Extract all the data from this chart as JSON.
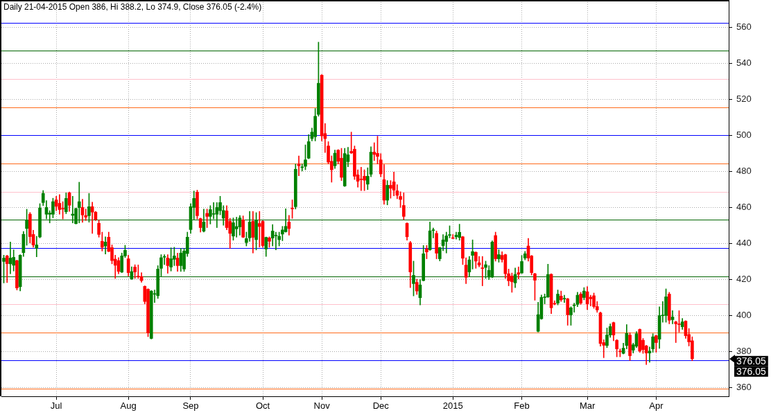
{
  "chart_data": {
    "type": "candlestick",
    "title": "Daily 21-04-2015 Open 386, Hi 388.2, Lo 374.9, Close 376.05 (-2.4%)",
    "categories": [
      null,
      null,
      null,
      null,
      null,
      null,
      null,
      null,
      null,
      null,
      null,
      null,
      null,
      null,
      null,
      null,
      "Jul",
      null,
      null,
      null,
      null,
      null,
      null,
      null,
      null,
      null,
      null,
      null,
      null,
      null,
      null,
      null,
      null,
      null,
      null,
      null,
      null,
      null,
      "Aug",
      null,
      null,
      null,
      null,
      null,
      null,
      null,
      null,
      null,
      null,
      null,
      null,
      null,
      null,
      null,
      null,
      null,
      null,
      "Sep",
      null,
      null,
      null,
      null,
      null,
      null,
      null,
      null,
      null,
      null,
      null,
      null,
      null,
      null,
      null,
      null,
      null,
      null,
      null,
      null,
      null,
      "Oct",
      null,
      null,
      null,
      null,
      null,
      null,
      null,
      null,
      null,
      null,
      null,
      null,
      null,
      null,
      null,
      null,
      null,
      "Nov",
      null,
      null,
      null,
      null,
      null,
      null,
      null,
      null,
      null,
      null,
      null,
      null,
      null,
      null,
      null,
      null,
      null,
      "Dec",
      null,
      null,
      null,
      null,
      null,
      null,
      null,
      null,
      null,
      null,
      null,
      null,
      null,
      null,
      null,
      null,
      null,
      null,
      null,
      null,
      null,
      "2015",
      null,
      null,
      null,
      null,
      null,
      null,
      null,
      null,
      null,
      null,
      null,
      null,
      null,
      null,
      null,
      null,
      null,
      null,
      null,
      null,
      "Feb",
      null,
      null,
      null,
      null,
      null,
      null,
      null,
      null,
      null,
      null,
      null,
      null,
      null,
      null,
      null,
      null,
      null,
      null,
      null,
      "Mar",
      null,
      null,
      null,
      null,
      null,
      null,
      null,
      null,
      null,
      null,
      null,
      null,
      null,
      null,
      null,
      null,
      null,
      null,
      null,
      null,
      "Apr",
      null,
      null,
      null,
      null,
      null,
      null,
      null,
      null,
      null,
      null,
      null
    ],
    "ohlc": [
      [
        430.0,
        433.5,
        418.1,
        431.9
      ],
      [
        433.1,
        433.5,
        418.3,
        428.8
      ],
      [
        428.7,
        440.8,
        423.2,
        431.9
      ],
      [
        427.9,
        436.5,
        424.7,
        432.3
      ],
      [
        430.5,
        430.8,
        414.2,
        415.3
      ],
      [
        416.0,
        433.8,
        413.7,
        433.5
      ],
      [
        434.9,
        446.7,
        432.8,
        445.1
      ],
      [
        448.3,
        459.0,
        439.0,
        453.0
      ],
      [
        456.3,
        457.2,
        440.3,
        443.8
      ],
      [
        445.0,
        447.3,
        437.9,
        439.1
      ],
      [
        437.3,
        444.0,
        432.6,
        439.2
      ],
      [
        443.6,
        462.1,
        443.1,
        459.7
      ],
      [
        462.7,
        469.4,
        461.0,
        467.8
      ],
      [
        456.2,
        463.8,
        453.6,
        460.0
      ],
      [
        456.2,
        458.2,
        451.4,
        456.9
      ],
      [
        456.2,
        465.1,
        454.2,
        463.2
      ],
      [
        464.2,
        466.2,
        458.2,
        460.6
      ],
      [
        462.3,
        467.1,
        456.2,
        458.8
      ],
      [
        459.3,
        463.2,
        453.6,
        459.1
      ],
      [
        457.6,
        468.1,
        456.5,
        465.0
      ],
      [
        468.1,
        468.6,
        457.8,
        461.2
      ],
      [
        455.6,
        466.2,
        451.4,
        456.3
      ],
      [
        451.0,
        459.7,
        450.8,
        459.4
      ],
      [
        459.9,
        474.0,
        451.4,
        463.2
      ],
      [
        460.0,
        464.5,
        451.7,
        455.8
      ],
      [
        455.5,
        459.1,
        452.7,
        454.6
      ],
      [
        455.4,
        467.8,
        451.8,
        460.4
      ],
      [
        460.4,
        462.9,
        445.6,
        457.4
      ],
      [
        457.4,
        457.8,
        452.7,
        453.3
      ],
      [
        451.2,
        452.9,
        443.5,
        445.0
      ],
      [
        441.2,
        446.3,
        435.8,
        437.9
      ],
      [
        438.6,
        443.7,
        434.1,
        440.8
      ],
      [
        443.5,
        446.3,
        435.4,
        435.6
      ],
      [
        437.7,
        439.2,
        428.7,
        430.5
      ],
      [
        431.3,
        433.5,
        420.6,
        427.9
      ],
      [
        430.5,
        432.2,
        423.2,
        424.5
      ],
      [
        424.1,
        434.7,
        423.8,
        433.1
      ],
      [
        433.1,
        439.0,
        432.2,
        436.2
      ],
      [
        431.5,
        433.5,
        421.9,
        423.8
      ],
      [
        420.3,
        427.1,
        420.0,
        424.4
      ],
      [
        426.9,
        428.2,
        420.6,
        424.2
      ],
      [
        421.8,
        428.1,
        420.6,
        421.5
      ],
      [
        421.7,
        423.8,
        418.5,
        419.4
      ],
      [
        416.2,
        416.5,
        406.5,
        407.8
      ],
      [
        414.6,
        414.9,
        388.3,
        390.3
      ],
      [
        387.3,
        413.9,
        387.0,
        413.6
      ],
      [
        411.8,
        414.2,
        407.2,
        412.0
      ],
      [
        411.0,
        427.7,
        409.5,
        425.8
      ],
      [
        426.2,
        433.8,
        421.5,
        432.1
      ],
      [
        432.4,
        433.8,
        428.3,
        432.6
      ],
      [
        431.9,
        433.8,
        423.5,
        427.7
      ],
      [
        426.9,
        437.6,
        424.7,
        431.5
      ],
      [
        431.2,
        437.9,
        427.7,
        433.1
      ],
      [
        431.9,
        434.7,
        424.5,
        427.7
      ],
      [
        427.7,
        437.3,
        424.5,
        434.7
      ],
      [
        425.8,
        437.3,
        424.5,
        435.8
      ],
      [
        434.4,
        446.3,
        432.8,
        443.5
      ],
      [
        447.7,
        462.1,
        445.6,
        460.4
      ],
      [
        460.0,
        469.1,
        453.1,
        465.0
      ],
      [
        468.5,
        469.6,
        453.6,
        455.4
      ],
      [
        453.8,
        454.1,
        446.3,
        448.8
      ],
      [
        446.8,
        459.1,
        446.3,
        451.9
      ],
      [
        456.7,
        459.1,
        448.8,
        455.0
      ],
      [
        455.0,
        461.0,
        450.8,
        458.8
      ],
      [
        456.2,
        462.7,
        453.6,
        456.4
      ],
      [
        456.2,
        462.7,
        448.8,
        460.0
      ],
      [
        458.2,
        466.2,
        455.9,
        462.7
      ],
      [
        454.0,
        461.0,
        450.1,
        458.3
      ],
      [
        458.1,
        461.0,
        447.6,
        448.8
      ],
      [
        452.3,
        454.0,
        437.3,
        445.6
      ],
      [
        444.1,
        454.2,
        441.8,
        451.5
      ],
      [
        448.1,
        454.6,
        443.5,
        449.4
      ],
      [
        449.2,
        455.5,
        444.6,
        454.2
      ],
      [
        453.1,
        455.3,
        443.2,
        443.5
      ],
      [
        440.5,
        446.3,
        438.6,
        442.7
      ],
      [
        443.1,
        457.8,
        441.2,
        451.9
      ],
      [
        452.3,
        457.8,
        434.7,
        443.4
      ],
      [
        442.1,
        457.1,
        436.4,
        453.0
      ],
      [
        451.1,
        457.8,
        438.0,
        449.4
      ],
      [
        452.3,
        452.6,
        437.9,
        438.8
      ],
      [
        436.9,
        443.6,
        432.8,
        443.4
      ],
      [
        443.1,
        443.7,
        437.9,
        441.2
      ],
      [
        443.0,
        450.5,
        438.6,
        446.9
      ],
      [
        444.2,
        446.3,
        436.4,
        444.4
      ],
      [
        442.1,
        446.3,
        438.6,
        444.0
      ],
      [
        445.2,
        449.5,
        441.5,
        447.5
      ],
      [
        446.5,
        459.3,
        446.2,
        449.5
      ],
      [
        451.9,
        455.6,
        444.6,
        448.3
      ],
      [
        459.4,
        464.2,
        453.9,
        459.2
      ],
      [
        460.4,
        484.1,
        459.1,
        481.2
      ],
      [
        484.1,
        488.6,
        477.6,
        483.1
      ],
      [
        482.1,
        484.1,
        480.2,
        482.3
      ],
      [
        482.8,
        494.7,
        480.9,
        486.4
      ],
      [
        487.3,
        500.4,
        487.0,
        496.5
      ],
      [
        498.2,
        504.0,
        496.9,
        501.8
      ],
      [
        499.2,
        514.9,
        496.9,
        510.6
      ],
      [
        511.6,
        551.7,
        510.6,
        528.9
      ],
      [
        533.4,
        533.7,
        496.9,
        499.7
      ],
      [
        501.0,
        506.5,
        490.5,
        498.2
      ],
      [
        494.1,
        496.5,
        484.1,
        485.1
      ],
      [
        485.6,
        488.6,
        474.0,
        480.9
      ],
      [
        483.1,
        491.8,
        481.6,
        490.1
      ],
      [
        491.8,
        492.1,
        484.1,
        485.6
      ],
      [
        487.3,
        492.8,
        474.9,
        476.7
      ],
      [
        471.9,
        492.8,
        471.6,
        489.9
      ],
      [
        485.4,
        493.4,
        482.6,
        489.2
      ],
      [
        491.1,
        501.8,
        489.9,
        490.2
      ],
      [
        492.3,
        494.1,
        475.5,
        477.3
      ],
      [
        478.1,
        480.9,
        471.2,
        474.5
      ],
      [
        475.6,
        482.3,
        469.3,
        475.4
      ],
      [
        477.3,
        480.9,
        469.3,
        475.1
      ],
      [
        472.9,
        482.0,
        469.9,
        477.3
      ],
      [
        478.4,
        493.7,
        477.0,
        490.7
      ],
      [
        490.7,
        495.9,
        486.0,
        489.4
      ],
      [
        490.0,
        499.5,
        484.1,
        488.3
      ],
      [
        486.4,
        489.9,
        477.0,
        478.6
      ],
      [
        475.4,
        483.8,
        461.7,
        464.0
      ],
      [
        464.0,
        474.9,
        461.4,
        472.3
      ],
      [
        472.3,
        474.9,
        465.1,
        470.6
      ],
      [
        474.2,
        479.6,
        466.4,
        469.6
      ],
      [
        469.2,
        472.6,
        464.8,
        466.7
      ],
      [
        466.1,
        468.7,
        460.0,
        464.4
      ],
      [
        461.1,
        468.1,
        453.3,
        455.0
      ],
      [
        451.2,
        451.5,
        441.8,
        443.7
      ],
      [
        440.4,
        441.2,
        415.5,
        424.2
      ],
      [
        417.7,
        430.2,
        410.9,
        422.3
      ],
      [
        418.4,
        420.2,
        411.7,
        413.6
      ],
      [
        409.9,
        420.0,
        405.9,
        417.0
      ],
      [
        419.4,
        438.9,
        419.2,
        434.3
      ],
      [
        437.0,
        438.9,
        431.5,
        435.3
      ],
      [
        436.5,
        452.0,
        436.2,
        447.0
      ],
      [
        447.2,
        448.6,
        443.1,
        447.4
      ],
      [
        445.6,
        446.9,
        431.5,
        434.6
      ],
      [
        431.5,
        437.9,
        430.3,
        437.7
      ],
      [
        438.8,
        444.9,
        436.0,
        442.0
      ],
      [
        441.1,
        446.3,
        434.7,
        444.2
      ],
      [
        444.5,
        449.8,
        443.1,
        444.6
      ],
      [
        442.9,
        445.0,
        442.7,
        442.8
      ],
      [
        443.7,
        446.3,
        442.4,
        444.6
      ],
      [
        443.3,
        450.7,
        441.8,
        446.2
      ],
      [
        443.7,
        444.0,
        428.3,
        431.8
      ],
      [
        428.0,
        432.1,
        417.7,
        421.2
      ],
      [
        424.2,
        432.8,
        421.8,
        430.9
      ],
      [
        433.4,
        442.0,
        425.8,
        435.5
      ],
      [
        435.1,
        435.4,
        426.2,
        430.2
      ],
      [
        429.3,
        432.8,
        427.0,
        428.0
      ],
      [
        426.5,
        432.8,
        416.5,
        426.1
      ],
      [
        426.7,
        430.2,
        420.6,
        428.2
      ],
      [
        421.3,
        427.7,
        420.0,
        425.1
      ],
      [
        421.3,
        441.5,
        421.0,
        440.8
      ],
      [
        444.4,
        446.3,
        430.2,
        431.5
      ],
      [
        431.5,
        436.6,
        429.6,
        433.8
      ],
      [
        433.4,
        435.4,
        429.6,
        431.1
      ],
      [
        433.8,
        434.1,
        420.6,
        423.2
      ],
      [
        423.2,
        425.8,
        416.5,
        419.3
      ],
      [
        421.9,
        423.6,
        412.9,
        418.7
      ],
      [
        418.1,
        426.4,
        415.5,
        422.8
      ],
      [
        423.8,
        427.0,
        420.3,
        422.9
      ],
      [
        423.6,
        433.4,
        423.3,
        430.0
      ],
      [
        431.9,
        435.6,
        430.9,
        434.3
      ],
      [
        438.6,
        442.8,
        430.2,
        431.9
      ],
      [
        433.1,
        433.4,
        422.5,
        423.8
      ],
      [
        423.2,
        423.5,
        408.5,
        419.6
      ],
      [
        391.2,
        407.4,
        390.9,
        400.5
      ],
      [
        398.2,
        411.4,
        397.9,
        410.1
      ],
      [
        410.0,
        412.0,
        406.5,
        410.2
      ],
      [
        410.3,
        428.5,
        410.0,
        422.8
      ],
      [
        422.9,
        423.2,
        401.1,
        404.3
      ],
      [
        406.6,
        408.2,
        405.9,
        406.4
      ],
      [
        406.9,
        414.2,
        405.9,
        411.9
      ],
      [
        410.8,
        413.6,
        407.8,
        408.7
      ],
      [
        409.2,
        411.3,
        407.2,
        409.4
      ],
      [
        409.3,
        409.6,
        394.6,
        400.4
      ],
      [
        400.4,
        404.9,
        394.6,
        404.3
      ],
      [
        405.5,
        406.9,
        401.8,
        405.7
      ],
      [
        406.2,
        412.9,
        404.9,
        411.3
      ],
      [
        411.9,
        412.9,
        406.2,
        406.9
      ],
      [
        410.0,
        415.5,
        408.7,
        413.6
      ],
      [
        413.2,
        416.1,
        403.3,
        406.5
      ],
      [
        410.2,
        411.3,
        405.3,
        409.3
      ],
      [
        411.0,
        412.5,
        404.0,
        405.0
      ],
      [
        405.0,
        407.8,
        401.8,
        403.1
      ],
      [
        401.5,
        402.0,
        383.0,
        384.5
      ],
      [
        385.0,
        386.6,
        376.6,
        383.5
      ],
      [
        383.4,
        393.1,
        382.2,
        389.2
      ],
      [
        389.2,
        395.4,
        387.9,
        393.9
      ],
      [
        396.1,
        396.4,
        386.0,
        389.2
      ],
      [
        386.3,
        386.7,
        377.1,
        381.5
      ],
      [
        380.1,
        381.5,
        377.1,
        379.9
      ],
      [
        379.0,
        384.7,
        378.7,
        381.9
      ],
      [
        383.4,
        395.0,
        381.5,
        390.1
      ],
      [
        389.2,
        390.5,
        375.1,
        377.7
      ],
      [
        380.8,
        384.7,
        379.2,
        383.8
      ],
      [
        383.0,
        391.1,
        382.2,
        389.9
      ],
      [
        392.3,
        392.6,
        379.6,
        380.3
      ],
      [
        386.3,
        387.3,
        379.0,
        381.1
      ],
      [
        383.2,
        383.5,
        372.8,
        379.2
      ],
      [
        379.2,
        382.6,
        374.1,
        380.3
      ],
      [
        381.5,
        389.9,
        379.6,
        388.2
      ],
      [
        388.8,
        389.2,
        379.6,
        385.0
      ],
      [
        386.9,
        404.9,
        381.8,
        400.0
      ],
      [
        399.9,
        407.8,
        396.3,
        400.1
      ],
      [
        400.0,
        414.8,
        396.3,
        410.4
      ],
      [
        411.9,
        412.9,
        395.4,
        397.4
      ],
      [
        397.7,
        402.7,
        395.4,
        399.2
      ],
      [
        396.5,
        396.9,
        385.0,
        395.4
      ],
      [
        395.2,
        402.7,
        390.8,
        395.0
      ],
      [
        393.8,
        398.4,
        392.3,
        396.5
      ],
      [
        396.9,
        397.2,
        387.3,
        388.8
      ],
      [
        389.5,
        392.8,
        383.1,
        385.4
      ],
      [
        386,
        388.2,
        374.9,
        376.05
      ]
    ],
    "colors": [
      "#008000",
      "#ff0000",
      "#008000",
      "#008000",
      "#ff0000",
      "#008000",
      "#008000",
      "#008000",
      "#ff0000",
      "#ff0000",
      "#008000",
      "#008000",
      "#008000",
      "#008000",
      "#008000",
      "#008000",
      "#ff0000",
      "#ff0000",
      "#ff0000",
      "#008000",
      "#ff0000",
      "#008000",
      "#008000",
      "#008000",
      "#ff0000",
      "#ff0000",
      "#008000",
      "#ff0000",
      "#ff0000",
      "#ff0000",
      "#ff0000",
      "#008000",
      "#ff0000",
      "#ff0000",
      "#ff0000",
      "#ff0000",
      "#008000",
      "#008000",
      "#ff0000",
      "#008000",
      "#ff0000",
      "#ff0000",
      "#ff0000",
      "#ff0000",
      "#ff0000",
      "#008000",
      "#008000",
      "#008000",
      "#008000",
      "#008000",
      "#ff0000",
      "#008000",
      "#008000",
      "#ff0000",
      "#008000",
      "#008000",
      "#008000",
      "#008000",
      "#008000",
      "#ff0000",
      "#ff0000",
      "#008000",
      "#ff0000",
      "#008000",
      "#008000",
      "#008000",
      "#008000",
      "#008000",
      "#ff0000",
      "#ff0000",
      "#008000",
      "#008000",
      "#008000",
      "#ff0000",
      "#008000",
      "#008000",
      "#ff0000",
      "#008000",
      "#ff0000",
      "#ff0000",
      "#008000",
      "#ff0000",
      "#008000",
      "#008000",
      "#008000",
      "#008000",
      "#008000",
      "#ff0000",
      "#ff0000",
      "#008000",
      "#ff0000",
      "#008000",
      "#008000",
      "#008000",
      "#008000",
      "#008000",
      "#008000",
      "#ff0000",
      "#ff0000",
      "#ff0000",
      "#ff0000",
      "#008000",
      "#ff0000",
      "#ff0000",
      "#008000",
      "#008000",
      "#ff0000",
      "#ff0000",
      "#ff0000",
      "#ff0000",
      "#ff0000",
      "#008000",
      "#008000",
      "#ff0000",
      "#ff0000",
      "#ff0000",
      "#ff0000",
      "#008000",
      "#ff0000",
      "#ff0000",
      "#ff0000",
      "#ff0000",
      "#ff0000",
      "#ff0000",
      "#ff0000",
      "#008000",
      "#ff0000",
      "#008000",
      "#008000",
      "#ff0000",
      "#008000",
      "#008000",
      "#ff0000",
      "#008000",
      "#008000",
      "#008000",
      "#008000",
      "#ff0000",
      "#008000",
      "#008000",
      "#ff0000",
      "#ff0000",
      "#008000",
      "#008000",
      "#ff0000",
      "#ff0000",
      "#ff0000",
      "#008000",
      "#008000",
      "#008000",
      "#ff0000",
      "#008000",
      "#ff0000",
      "#ff0000",
      "#ff0000",
      "#ff0000",
      "#008000",
      "#ff0000",
      "#008000",
      "#008000",
      "#ff0000",
      "#ff0000",
      "#ff0000",
      "#008000",
      "#008000",
      "#008000",
      "#008000",
      "#ff0000",
      "#ff0000",
      "#008000",
      "#ff0000",
      "#008000",
      "#ff0000",
      "#008000",
      "#008000",
      "#008000",
      "#ff0000",
      "#008000",
      "#ff0000",
      "#ff0000",
      "#ff0000",
      "#ff0000",
      "#ff0000",
      "#ff0000",
      "#008000",
      "#008000",
      "#ff0000",
      "#ff0000",
      "#ff0000",
      "#008000",
      "#008000",
      "#ff0000",
      "#008000",
      "#008000",
      "#ff0000",
      "#ff0000",
      "#ff0000",
      "#008000",
      "#008000",
      "#ff0000",
      "#008000",
      "#008000",
      "#008000",
      "#ff0000",
      "#008000",
      "#ff0000",
      "#ff0000",
      "#008000",
      "#ff0000",
      "#ff0000",
      "#ff0000"
    ],
    "ylim": [
      355.2,
      575.1
    ],
    "yticks": [
      360,
      380,
      400,
      420,
      440,
      460,
      480,
      500,
      520,
      540,
      560
    ],
    "grid": true,
    "ref_lines": [
      {
        "axis": "y",
        "value": 562.5,
        "color": "#0000ff"
      },
      {
        "axis": "y",
        "value": 546.9,
        "color": "#006400"
      },
      {
        "axis": "y",
        "value": 531.3,
        "color": "#ffc0cb"
      },
      {
        "axis": "y",
        "value": 515.6,
        "color": "#ff6a1a"
      },
      {
        "axis": "y",
        "value": 500,
        "color": "#0000ff"
      },
      {
        "axis": "y",
        "value": 484.4,
        "color": "#ff6a1a"
      },
      {
        "axis": "y",
        "value": 468.8,
        "color": "#ffc0cb"
      },
      {
        "axis": "y",
        "value": 453.1,
        "color": "#006400"
      },
      {
        "axis": "y",
        "value": 437.5,
        "color": "#0000ff"
      },
      {
        "axis": "y",
        "value": 421.9,
        "color": "#006400"
      },
      {
        "axis": "y",
        "value": 406.3,
        "color": "#ffc0cb"
      },
      {
        "axis": "y",
        "value": 390.6,
        "color": "#ff6a1a"
      },
      {
        "axis": "y",
        "value": 375,
        "color": "#0000ff"
      },
      {
        "axis": "y",
        "value": 359.4,
        "color": "#ff6a1a"
      }
    ],
    "annotations": [
      "376.05",
      "376.05"
    ]
  }
}
